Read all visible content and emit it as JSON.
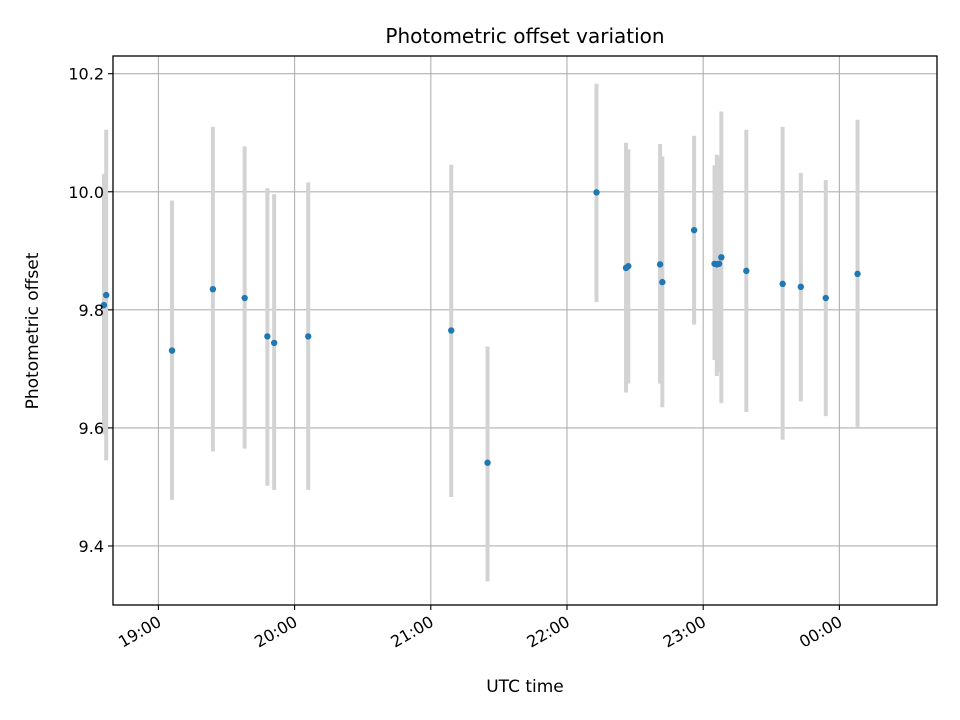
{
  "chart_data": {
    "type": "scatter",
    "title": "Photometric offset variation",
    "xlabel": "UTC time",
    "ylabel": "Photometric offset",
    "x_axis_kind": "time",
    "xlim": [
      "18:40",
      "00:43"
    ],
    "ylim": [
      9.3,
      10.23
    ],
    "xticks": [
      {
        "t": "19:00",
        "label": "19:00"
      },
      {
        "t": "20:00",
        "label": "20:00"
      },
      {
        "t": "21:00",
        "label": "21:00"
      },
      {
        "t": "22:00",
        "label": "22:00"
      },
      {
        "t": "23:00",
        "label": "23:00"
      },
      {
        "t": "00:00",
        "label": "00:00"
      }
    ],
    "yticks": [
      {
        "v": 9.4,
        "label": "9.4"
      },
      {
        "v": 9.6,
        "label": "9.6"
      },
      {
        "v": 9.8,
        "label": "9.8"
      },
      {
        "v": 10.0,
        "label": "10.0"
      },
      {
        "v": 10.2,
        "label": "10.2"
      }
    ],
    "grid": true,
    "marker_color": "#1f77b4",
    "errorbar_color": "#d3d3d3",
    "points": [
      {
        "t": "18:36",
        "y": 9.808,
        "low": 9.59,
        "high": 10.03
      },
      {
        "t": "18:37",
        "y": 9.825,
        "low": 9.545,
        "high": 10.105
      },
      {
        "t": "19:06",
        "y": 9.731,
        "low": 9.478,
        "high": 9.985
      },
      {
        "t": "19:24",
        "y": 9.835,
        "low": 9.56,
        "high": 10.11
      },
      {
        "t": "19:38",
        "y": 9.82,
        "low": 9.565,
        "high": 10.077
      },
      {
        "t": "19:48",
        "y": 9.755,
        "low": 9.502,
        "high": 10.006
      },
      {
        "t": "19:51",
        "y": 9.744,
        "low": 9.495,
        "high": 9.996
      },
      {
        "t": "20:06",
        "y": 9.755,
        "low": 9.495,
        "high": 10.016
      },
      {
        "t": "21:09",
        "y": 9.765,
        "low": 9.483,
        "high": 10.046
      },
      {
        "t": "21:25",
        "y": 9.541,
        "low": 9.34,
        "high": 9.738
      },
      {
        "t": "22:13",
        "y": 9.999,
        "low": 9.813,
        "high": 10.183
      },
      {
        "t": "22:26",
        "y": 9.871,
        "low": 9.66,
        "high": 10.083
      },
      {
        "t": "22:27",
        "y": 9.874,
        "low": 9.675,
        "high": 10.072
      },
      {
        "t": "22:41",
        "y": 9.877,
        "low": 9.675,
        "high": 10.081
      },
      {
        "t": "22:42",
        "y": 9.847,
        "low": 9.635,
        "high": 10.06
      },
      {
        "t": "22:56",
        "y": 9.935,
        "low": 9.775,
        "high": 10.095
      },
      {
        "t": "23:05",
        "y": 9.878,
        "low": 9.715,
        "high": 10.045
      },
      {
        "t": "23:06",
        "y": 9.877,
        "low": 9.688,
        "high": 10.063
      },
      {
        "t": "23:07",
        "y": 9.878,
        "low": 9.695,
        "high": 10.06
      },
      {
        "t": "23:08",
        "y": 9.889,
        "low": 9.642,
        "high": 10.136
      },
      {
        "t": "23:19",
        "y": 9.866,
        "low": 9.627,
        "high": 10.105
      },
      {
        "t": "23:35",
        "y": 9.844,
        "low": 9.58,
        "high": 10.11
      },
      {
        "t": "23:43",
        "y": 9.839,
        "low": 9.645,
        "high": 10.032
      },
      {
        "t": "23:54",
        "y": 9.82,
        "low": 9.62,
        "high": 10.02
      },
      {
        "t": "00:08",
        "y": 9.861,
        "low": 9.6,
        "high": 10.122
      }
    ]
  }
}
